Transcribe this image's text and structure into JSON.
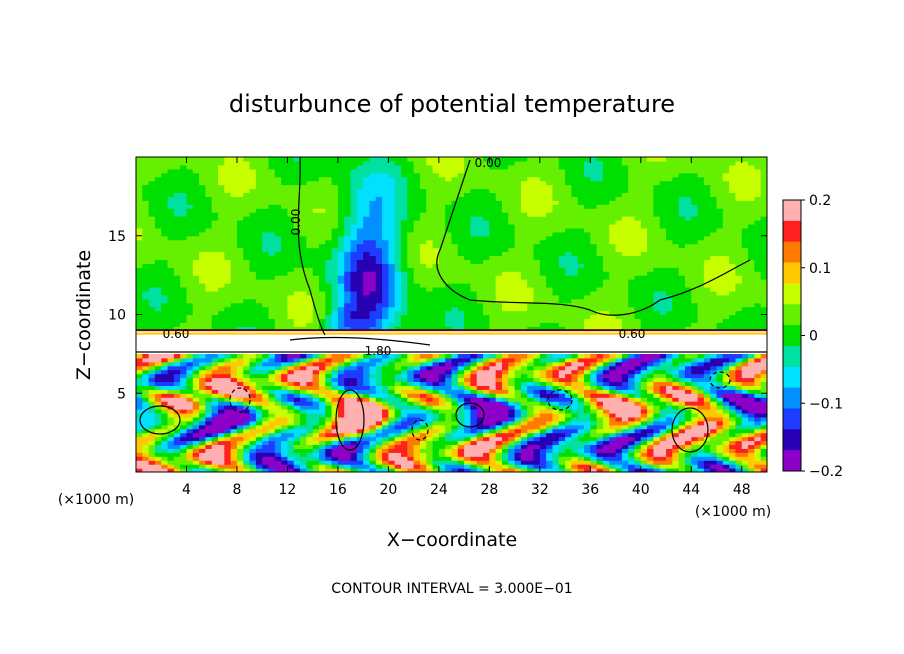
{
  "chart_data": {
    "type": "heatmap",
    "title": "disturbunce of potential temperature",
    "xlabel": "X−coordinate",
    "ylabel": "Z−coordinate",
    "x_unit_left": "(×1000 m)",
    "x_unit_right": "(×1000 m)",
    "xlim": [
      0,
      50
    ],
    "ylim": [
      0,
      20
    ],
    "x_ticks": [
      4,
      8,
      12,
      16,
      20,
      24,
      28,
      32,
      36,
      40,
      44,
      48
    ],
    "y_ticks": [
      5,
      10,
      15
    ],
    "colorbar": {
      "min": -0.2,
      "max": 0.2,
      "ticks": [
        "0.2",
        "0.1",
        "0",
        "−0.1",
        "−0.2"
      ],
      "colors": [
        "#ffb0b0",
        "#ff2020",
        "#ff7a00",
        "#ffc800",
        "#c8ff00",
        "#64f000",
        "#00e000",
        "#00e0a0",
        "#00e0ff",
        "#0090ff",
        "#1e3cff",
        "#2800b4",
        "#8c00c8"
      ]
    },
    "contour_labels": [
      "0.00",
      "0.00",
      "0.60",
      "0.60",
      "1.80"
    ],
    "contour_interval_text": "CONTOUR INTERVAL = 3.000E−01",
    "grid": false,
    "features": {
      "upper_field": "mostly near 0 (green) above z≈9",
      "cold_plume": {
        "x": [
          14,
          22
        ],
        "z": [
          8,
          19
        ],
        "value": -0.12
      },
      "stable_layer_z": [
        7.5,
        9
      ],
      "lower_field": "turbulent mixed values from -0.2 to 0.2 below z≈7.5"
    }
  }
}
